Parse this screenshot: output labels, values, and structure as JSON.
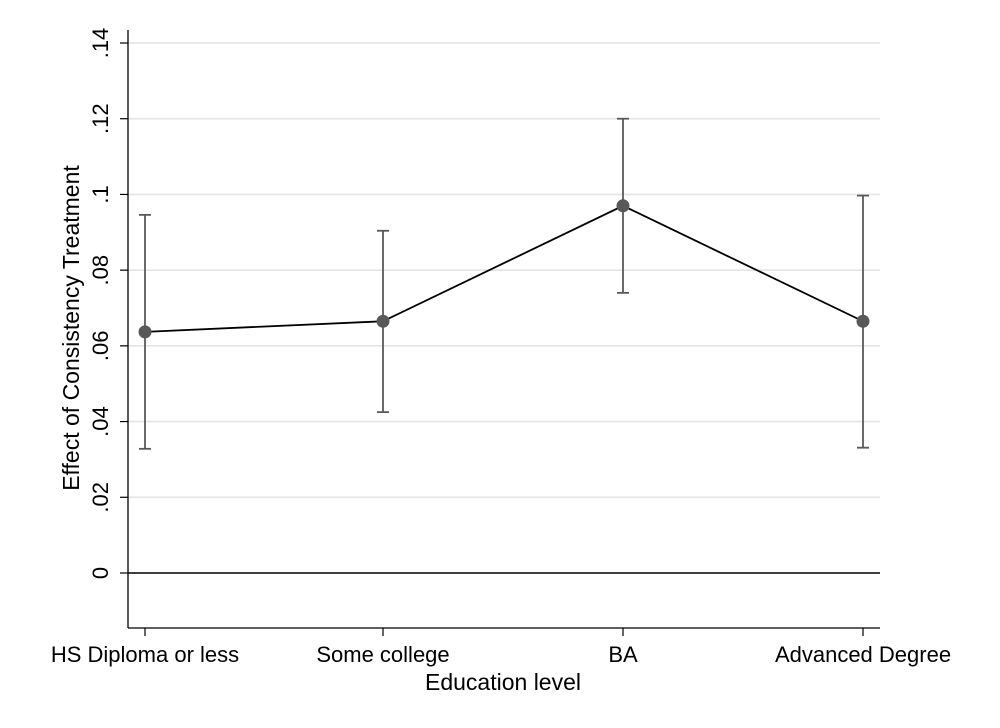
{
  "chart_data": {
    "type": "line",
    "title": "",
    "xlabel": "Education level",
    "ylabel": "Effect of Consistency Treatment",
    "categories": [
      "HS Diploma or less",
      "Some college",
      "BA",
      "Advanced Degree"
    ],
    "series": [
      {
        "values": [
          0.0637,
          0.0665,
          0.097,
          0.0665
        ],
        "ci_lower": [
          0.0328,
          0.0425,
          0.074,
          0.0331
        ],
        "ci_upper": [
          0.0946,
          0.0904,
          0.12,
          0.0997
        ]
      }
    ],
    "ylim": [
      -0.014,
      0.14
    ],
    "yticks": [
      0,
      0.02,
      0.04,
      0.06,
      0.08,
      0.1,
      0.12,
      0.14
    ],
    "ytick_labels": [
      "0",
      ".02",
      ".04",
      ".06",
      ".08",
      ".1",
      ".12",
      ".14"
    ],
    "grid": true,
    "legend": "none",
    "colors": {
      "line": "#000000",
      "marker": "#595959",
      "errorbar": "#595959",
      "grid": "#e4e4e4",
      "zero_line": "#000000"
    }
  }
}
